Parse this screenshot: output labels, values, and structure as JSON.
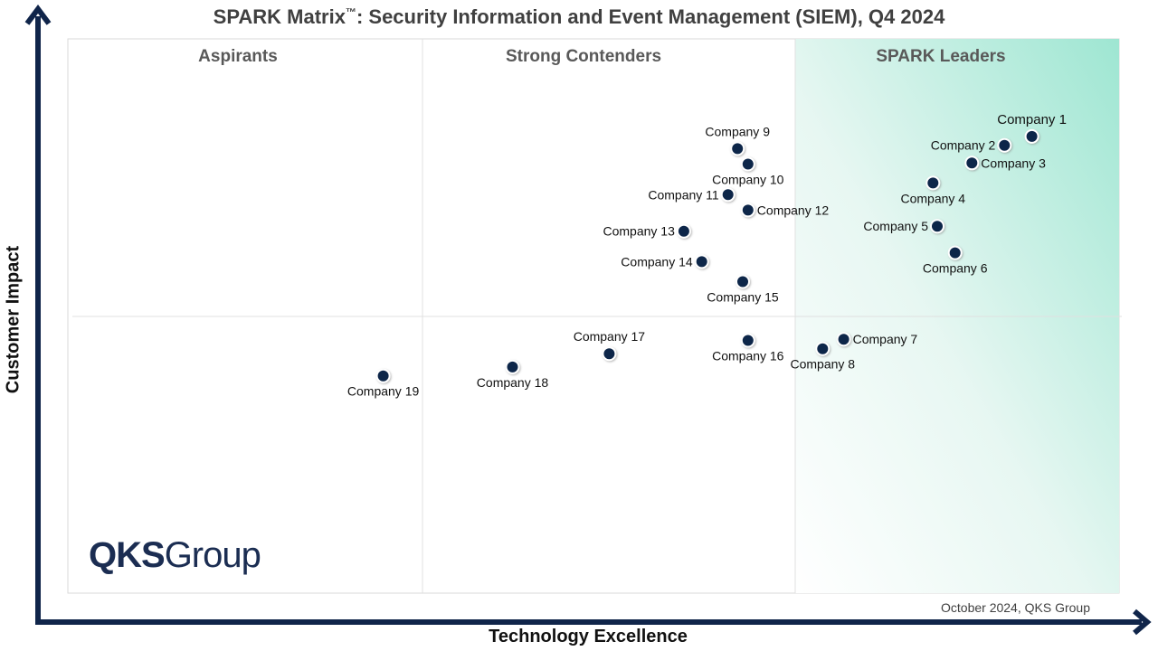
{
  "chart_data": {
    "type": "scatter",
    "title": "SPARK Matrix",
    "title_tm": "™",
    "title_rest": ": Security Information and Event Management (SIEM), Q4 2024",
    "xlabel": "Technology Excellence",
    "ylabel": "Customer Impact",
    "grid": true,
    "quadrants": [
      "Aspirants",
      "Strong Contenders",
      "SPARK Leaders"
    ],
    "points": [
      {
        "label": "Company 1",
        "x": 9.17,
        "y": 8.24
      },
      {
        "label": "Company 2",
        "x": 8.91,
        "y": 8.08
      },
      {
        "label": "Company 3",
        "x": 8.6,
        "y": 7.76
      },
      {
        "label": "Company 4",
        "x": 8.23,
        "y": 7.4
      },
      {
        "label": "Company 5",
        "x": 8.27,
        "y": 6.62
      },
      {
        "label": "Company 6",
        "x": 8.44,
        "y": 6.14
      },
      {
        "label": "Company 7",
        "x": 7.38,
        "y": 4.58
      },
      {
        "label": "Company 8",
        "x": 7.18,
        "y": 4.41
      },
      {
        "label": "Company 9",
        "x": 6.37,
        "y": 8.02
      },
      {
        "label": "Company 10",
        "x": 6.47,
        "y": 7.74
      },
      {
        "label": "Company 11",
        "x": 6.28,
        "y": 7.19
      },
      {
        "label": "Company 12",
        "x": 6.47,
        "y": 6.91
      },
      {
        "label": "Company 13",
        "x": 5.86,
        "y": 6.53
      },
      {
        "label": "Company 14",
        "x": 6.03,
        "y": 5.98
      },
      {
        "label": "Company 15",
        "x": 6.42,
        "y": 5.62
      },
      {
        "label": "Company 16",
        "x": 6.47,
        "y": 4.56
      },
      {
        "label": "Company 17",
        "x": 5.15,
        "y": 4.32
      },
      {
        "label": "Company 18",
        "x": 4.23,
        "y": 4.08
      },
      {
        "label": "Company 19",
        "x": 3.0,
        "y": 3.92
      }
    ]
  },
  "source_note": "October 2024, QKS Group",
  "logo": {
    "bold": "QKS",
    "light": "Group"
  }
}
